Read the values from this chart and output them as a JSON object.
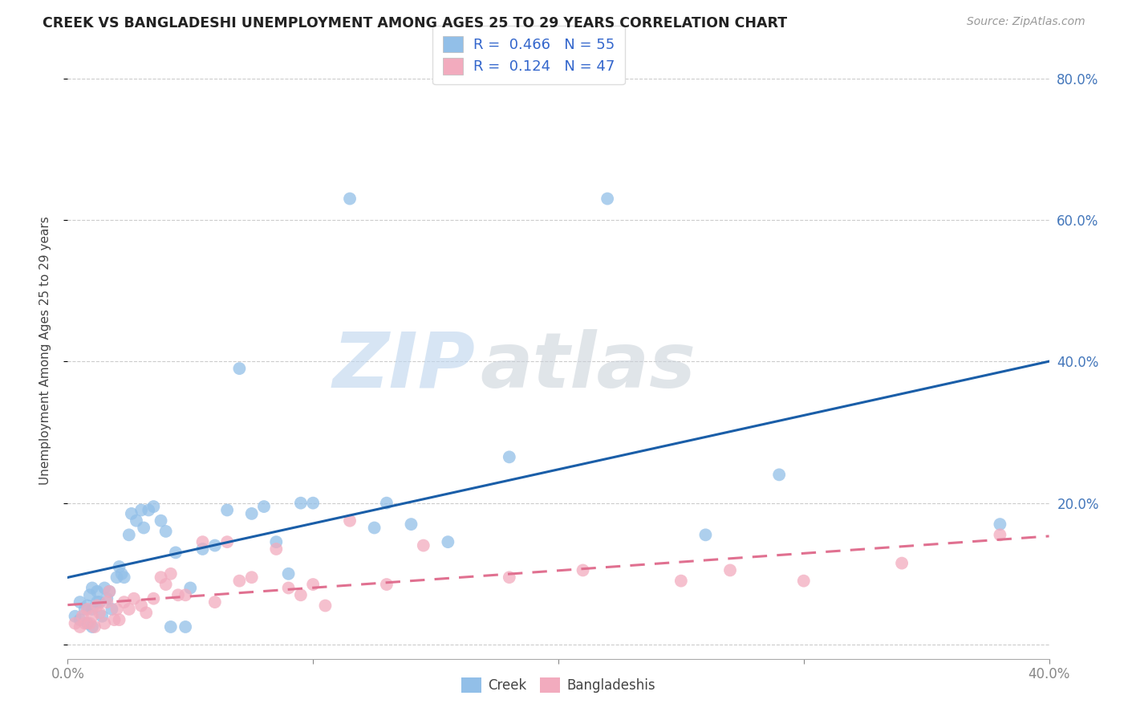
{
  "title": "CREEK VS BANGLADESHI UNEMPLOYMENT AMONG AGES 25 TO 29 YEARS CORRELATION CHART",
  "source": "Source: ZipAtlas.com",
  "ylabel": "Unemployment Among Ages 25 to 29 years",
  "xlim": [
    0.0,
    0.4
  ],
  "ylim": [
    -0.02,
    0.85
  ],
  "xticks": [
    0.0,
    0.1,
    0.2,
    0.3,
    0.4
  ],
  "xticklabels": [
    "0.0%",
    "",
    "",
    "",
    "40.0%"
  ],
  "yticks": [
    0.0,
    0.2,
    0.4,
    0.6,
    0.8
  ],
  "yticklabels_right": [
    "",
    "20.0%",
    "40.0%",
    "60.0%",
    "80.0%"
  ],
  "creek_color": "#92BFE8",
  "bangladeshi_color": "#F2ABBE",
  "creek_line_color": "#1A5EA8",
  "bangladeshi_line_color": "#E07090",
  "watermark_zip": "ZIP",
  "watermark_atlas": "atlas",
  "legend_R_creek": "0.466",
  "legend_N_creek": "55",
  "legend_R_bangladeshi": "0.124",
  "legend_N_bangladeshi": "47",
  "creek_points_x": [
    0.003,
    0.005,
    0.005,
    0.007,
    0.008,
    0.008,
    0.009,
    0.01,
    0.01,
    0.01,
    0.012,
    0.012,
    0.013,
    0.014,
    0.015,
    0.016,
    0.017,
    0.018,
    0.02,
    0.021,
    0.022,
    0.023,
    0.025,
    0.026,
    0.028,
    0.03,
    0.031,
    0.033,
    0.035,
    0.038,
    0.04,
    0.042,
    0.044,
    0.048,
    0.05,
    0.055,
    0.06,
    0.065,
    0.07,
    0.075,
    0.08,
    0.085,
    0.09,
    0.095,
    0.1,
    0.115,
    0.125,
    0.13,
    0.14,
    0.155,
    0.18,
    0.22,
    0.26,
    0.29,
    0.38
  ],
  "creek_points_y": [
    0.04,
    0.06,
    0.035,
    0.05,
    0.055,
    0.03,
    0.07,
    0.08,
    0.05,
    0.025,
    0.075,
    0.06,
    0.06,
    0.04,
    0.08,
    0.065,
    0.075,
    0.05,
    0.095,
    0.11,
    0.1,
    0.095,
    0.155,
    0.185,
    0.175,
    0.19,
    0.165,
    0.19,
    0.195,
    0.175,
    0.16,
    0.025,
    0.13,
    0.025,
    0.08,
    0.135,
    0.14,
    0.19,
    0.39,
    0.185,
    0.195,
    0.145,
    0.1,
    0.2,
    0.2,
    0.63,
    0.165,
    0.2,
    0.17,
    0.145,
    0.265,
    0.63,
    0.155,
    0.24,
    0.17
  ],
  "bangladeshi_points_x": [
    0.003,
    0.005,
    0.006,
    0.007,
    0.008,
    0.009,
    0.01,
    0.011,
    0.012,
    0.013,
    0.015,
    0.016,
    0.017,
    0.019,
    0.02,
    0.021,
    0.023,
    0.025,
    0.027,
    0.03,
    0.032,
    0.035,
    0.038,
    0.04,
    0.042,
    0.045,
    0.048,
    0.055,
    0.06,
    0.065,
    0.07,
    0.075,
    0.085,
    0.09,
    0.095,
    0.1,
    0.105,
    0.115,
    0.13,
    0.145,
    0.18,
    0.21,
    0.25,
    0.27,
    0.3,
    0.34,
    0.38
  ],
  "bangladeshi_points_y": [
    0.03,
    0.025,
    0.04,
    0.03,
    0.05,
    0.03,
    0.04,
    0.025,
    0.055,
    0.045,
    0.03,
    0.06,
    0.075,
    0.035,
    0.05,
    0.035,
    0.06,
    0.05,
    0.065,
    0.055,
    0.045,
    0.065,
    0.095,
    0.085,
    0.1,
    0.07,
    0.07,
    0.145,
    0.06,
    0.145,
    0.09,
    0.095,
    0.135,
    0.08,
    0.07,
    0.085,
    0.055,
    0.175,
    0.085,
    0.14,
    0.095,
    0.105,
    0.09,
    0.105,
    0.09,
    0.115,
    0.155
  ],
  "background_color": "#FFFFFF",
  "grid_color": "#CCCCCC",
  "grid_linestyle": "--"
}
